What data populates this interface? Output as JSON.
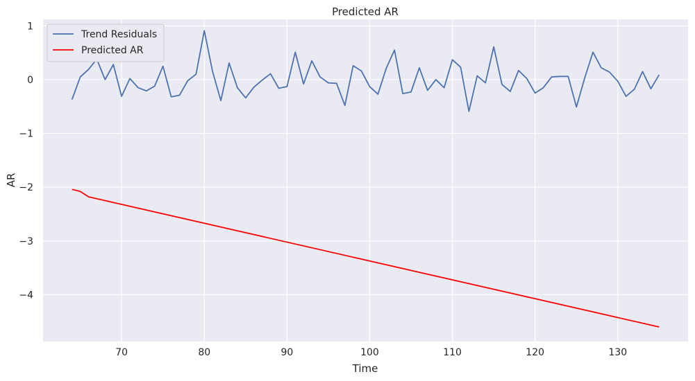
{
  "chart_data": {
    "type": "line",
    "title": "Predicted AR",
    "xlabel": "Time",
    "ylabel": "AR",
    "xlim": [
      60.5,
      138.5
    ],
    "ylim": [
      -4.87,
      1.12
    ],
    "xticks": [
      70,
      80,
      90,
      100,
      110,
      120,
      130
    ],
    "yticks": [
      1,
      0,
      -1,
      -2,
      -3,
      -4
    ],
    "ytick_labels": [
      "1",
      "0",
      "−1",
      "−2",
      "−3",
      "−4"
    ],
    "grid": true,
    "legend_position": "top-left",
    "series": [
      {
        "name": "Trend Residuals",
        "color": "#4c72b0",
        "x": [
          64,
          65,
          66,
          67,
          68,
          69,
          70,
          71,
          72,
          73,
          74,
          75,
          76,
          77,
          78,
          79,
          80,
          81,
          82,
          83,
          84,
          85,
          86,
          87,
          88,
          89,
          90,
          91,
          92,
          93,
          94,
          95,
          96,
          97,
          98,
          99,
          100,
          101,
          102,
          103,
          104,
          105,
          106,
          107,
          108,
          109,
          110,
          111,
          112,
          113,
          114,
          115,
          116,
          117,
          118,
          119,
          120,
          121,
          122,
          123,
          124,
          125,
          126,
          127,
          128,
          129,
          130,
          131,
          132,
          133,
          134,
          135
        ],
        "values": [
          -0.37,
          0.05,
          0.19,
          0.38,
          0.0,
          0.28,
          -0.31,
          0.02,
          -0.15,
          -0.21,
          -0.12,
          0.25,
          -0.32,
          -0.29,
          -0.02,
          0.1,
          0.91,
          0.15,
          -0.39,
          0.31,
          -0.15,
          -0.34,
          -0.14,
          -0.01,
          0.11,
          -0.16,
          -0.13,
          0.51,
          -0.08,
          0.35,
          0.05,
          -0.06,
          -0.07,
          -0.48,
          0.26,
          0.16,
          -0.13,
          -0.27,
          0.21,
          0.55,
          -0.26,
          -0.23,
          0.22,
          -0.2,
          0.0,
          -0.15,
          0.37,
          0.23,
          -0.59,
          0.07,
          -0.06,
          0.61,
          -0.09,
          -0.22,
          0.17,
          0.02,
          -0.25,
          -0.15,
          0.05,
          0.06,
          0.06,
          -0.51,
          0.03,
          0.51,
          0.22,
          0.14,
          -0.03,
          -0.31,
          -0.18,
          0.15,
          -0.17,
          0.09
        ]
      },
      {
        "name": "Predicted AR",
        "color": "#ff0000",
        "x": [
          64,
          65,
          66,
          135
        ],
        "values": [
          -2.04,
          -2.08,
          -2.18,
          -4.6
        ]
      }
    ]
  }
}
